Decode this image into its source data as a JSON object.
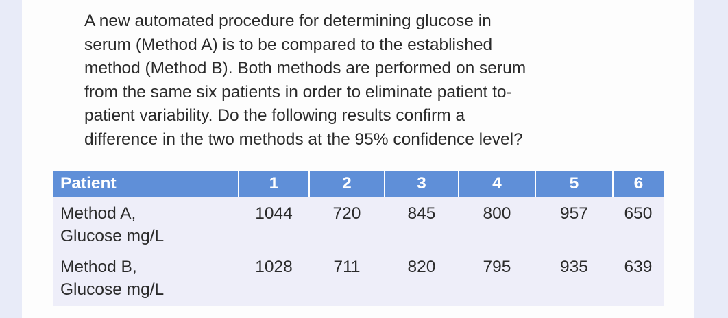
{
  "problem": {
    "lines": [
      "A new automated procedure for determining glucose in",
      "serum (Method A) is to be compared to the established",
      "method (Method B). Both methods are performed on serum",
      "from the same six patients in order to eliminate patient to-",
      "patient variability. Do the following results confirm a",
      "difference in the two methods at the 95% confidence level?"
    ]
  },
  "table": {
    "header": {
      "label": "Patient",
      "patients": [
        "1",
        "2",
        "3",
        "4",
        "5",
        "6"
      ]
    },
    "rows": [
      {
        "label_line1": "Method A,",
        "label_line2": "Glucose mg/L",
        "values": [
          "1044",
          "720",
          "845",
          "800",
          "957",
          "650"
        ]
      },
      {
        "label_line1": "Method B,",
        "label_line2": "Glucose mg/L",
        "values": [
          "1028",
          "711",
          "820",
          "795",
          "935",
          "639"
        ]
      }
    ]
  },
  "colors": {
    "header_bg": "#5f8fd8",
    "header_text": "#ffffff",
    "row_bg": "#eeeef9",
    "text": "#2a2a2a",
    "page_bg": "#e8ebf8"
  }
}
